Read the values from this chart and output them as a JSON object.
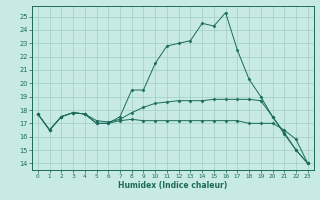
{
  "xlabel": "Humidex (Indice chaleur)",
  "xlim": [
    -0.5,
    23.5
  ],
  "ylim": [
    13.5,
    25.8
  ],
  "yticks": [
    14,
    15,
    16,
    17,
    18,
    19,
    20,
    21,
    22,
    23,
    24,
    25
  ],
  "xticks": [
    0,
    1,
    2,
    3,
    4,
    5,
    6,
    7,
    8,
    9,
    10,
    11,
    12,
    13,
    14,
    15,
    16,
    17,
    18,
    19,
    20,
    21,
    22,
    23
  ],
  "bg_color": "#c8eae4",
  "grid_color": "#a0ccc6",
  "line_color": "#1a6b5a",
  "lines": [
    {
      "x": [
        0,
        1,
        2,
        3,
        4,
        5,
        6,
        7,
        8,
        9,
        10,
        11,
        12,
        13,
        14,
        15,
        16,
        17,
        18,
        19,
        20,
        21,
        22,
        23
      ],
      "y": [
        17.7,
        16.5,
        17.5,
        17.8,
        17.7,
        17.0,
        17.0,
        17.5,
        19.5,
        19.5,
        21.5,
        22.8,
        23.0,
        23.2,
        24.5,
        24.3,
        25.3,
        22.5,
        20.3,
        19.0,
        17.5,
        16.3,
        15.0,
        14.0
      ]
    },
    {
      "x": [
        0,
        1,
        2,
        3,
        4,
        5,
        6,
        7,
        8,
        9,
        10,
        11,
        12,
        13,
        14,
        15,
        16,
        17,
        18,
        19,
        20,
        21,
        22,
        23
      ],
      "y": [
        17.7,
        16.5,
        17.5,
        17.8,
        17.7,
        17.2,
        17.1,
        17.3,
        17.8,
        18.2,
        18.5,
        18.6,
        18.7,
        18.7,
        18.7,
        18.8,
        18.8,
        18.8,
        18.8,
        18.7,
        17.5,
        16.2,
        15.0,
        14.0
      ]
    },
    {
      "x": [
        0,
        1,
        2,
        3,
        4,
        5,
        6,
        7,
        8,
        9,
        10,
        11,
        12,
        13,
        14,
        15,
        16,
        17,
        18,
        19,
        20,
        21,
        22,
        23
      ],
      "y": [
        17.7,
        16.5,
        17.5,
        17.8,
        17.7,
        17.0,
        17.0,
        17.2,
        17.3,
        17.2,
        17.2,
        17.2,
        17.2,
        17.2,
        17.2,
        17.2,
        17.2,
        17.2,
        17.0,
        17.0,
        17.0,
        16.5,
        15.8,
        14.0
      ]
    }
  ]
}
